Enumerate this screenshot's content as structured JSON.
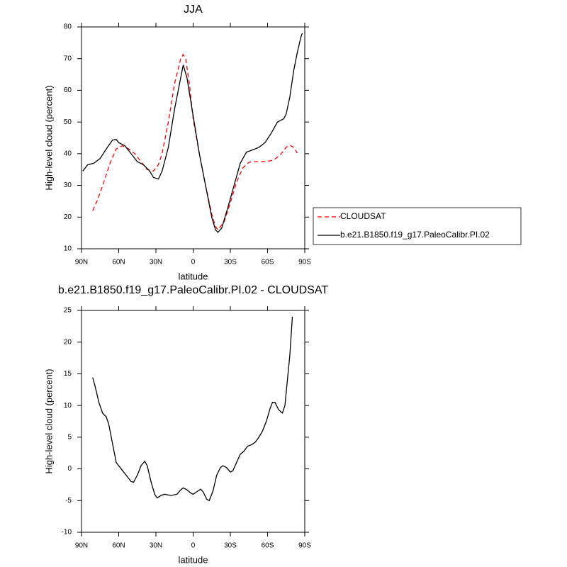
{
  "chart_data": [
    {
      "type": "line",
      "title": "JJA",
      "x_label": "latitude",
      "y_label": "High-level cloud (percent)",
      "xlim": [
        90,
        -90
      ],
      "ylim": [
        10,
        80
      ],
      "xticks": [
        {
          "value": 90,
          "label": "90N"
        },
        {
          "value": 60,
          "label": "60N"
        },
        {
          "value": 30,
          "label": "30N"
        },
        0,
        {
          "value": -30,
          "label": "30S"
        },
        {
          "value": -60,
          "label": "60S"
        },
        {
          "value": -90,
          "label": "90S"
        }
      ],
      "yticks": [
        10,
        20,
        30,
        40,
        50,
        60,
        70,
        80
      ],
      "legend": "right",
      "series": [
        {
          "name": "CLOUDSAT",
          "color": "#ff0000",
          "line_style": "dashed",
          "x": [
            81,
            77,
            72,
            67,
            62,
            57,
            52,
            47,
            42,
            37,
            32,
            28,
            25,
            20,
            15,
            10,
            8,
            6,
            3,
            0,
            -5,
            -10,
            -15,
            -18,
            -20,
            -25,
            -30,
            -35,
            -40,
            -45,
            -50,
            -55,
            -60,
            -65,
            -70,
            -75,
            -78,
            -81,
            -84
          ],
          "values": [
            22,
            25.5,
            31,
            37,
            41.5,
            42.5,
            41.5,
            40,
            37.5,
            35,
            34.5,
            36.5,
            40,
            50,
            62,
            70,
            71.3,
            70,
            62,
            51,
            40,
            30,
            21,
            17,
            16,
            18.5,
            24.5,
            31,
            35.5,
            37.3,
            37.5,
            37.5,
            37.6,
            38,
            39.5,
            42,
            42.7,
            42,
            40.2
          ]
        },
        {
          "name": "b.e21.B1850.f19_g17.PaleoCalibr.PI.02",
          "color": "#000000",
          "line_style": "solid",
          "x": [
            89,
            85,
            80,
            75,
            70,
            65,
            62,
            60,
            55,
            50,
            45,
            40,
            35,
            32,
            28,
            25,
            20,
            15,
            10,
            8,
            5,
            0,
            -5,
            -10,
            -15,
            -18,
            -20,
            -23,
            -28,
            -33,
            -38,
            -43,
            -48,
            -53,
            -58,
            -63,
            -68,
            -73,
            -75,
            -78,
            -81,
            -84,
            -87,
            -88
          ],
          "values": [
            34.5,
            36.5,
            37,
            38.5,
            41.5,
            44.3,
            44.5,
            43.5,
            42.5,
            40,
            37.5,
            36.5,
            34.5,
            32.5,
            32,
            34.5,
            42,
            54,
            64,
            68,
            64,
            52,
            40,
            30,
            20,
            16,
            15.2,
            16.5,
            23,
            30,
            37,
            40.5,
            41.2,
            42,
            43.5,
            46.5,
            50,
            51,
            52.5,
            58,
            66,
            72,
            77,
            78
          ]
        }
      ]
    },
    {
      "type": "line",
      "title": "b.e21.B1850.f19_g17.PaleoCalibr.PI.02 - CLOUDSAT",
      "x_label": "latitude",
      "y_label": "High-level cloud (percent)",
      "xlim": [
        90,
        -90
      ],
      "ylim": [
        -10,
        25
      ],
      "xticks": [
        {
          "value": 90,
          "label": "90N"
        },
        {
          "value": 60,
          "label": "60N"
        },
        {
          "value": 30,
          "label": "30N"
        },
        0,
        {
          "value": -30,
          "label": "30S"
        },
        {
          "value": -60,
          "label": "60S"
        },
        {
          "value": -90,
          "label": "90S"
        }
      ],
      "yticks": [
        -10,
        -5,
        0,
        5,
        10,
        15,
        20,
        25
      ],
      "series": [
        {
          "color": "#000000",
          "line_style": "solid",
          "x": [
            81,
            79,
            76,
            73,
            70,
            68,
            65,
            62,
            58,
            54,
            50,
            48,
            45,
            42,
            39,
            37,
            34,
            31,
            29,
            26,
            23,
            18,
            13,
            10,
            8,
            5,
            2,
            0,
            -3,
            -6,
            -8,
            -11,
            -13,
            -16,
            -19,
            -22,
            -24,
            -27,
            -30,
            -32,
            -35,
            -38,
            -41,
            -44,
            -47,
            -50,
            -53,
            -56,
            -59,
            -62,
            -64,
            -66,
            -69,
            -72,
            -74,
            -76,
            -78,
            -80
          ],
          "values": [
            14.4,
            13,
            10.5,
            8.8,
            8.2,
            7,
            4,
            1,
            0,
            -1,
            -2,
            -2.1,
            -1,
            0.5,
            1.2,
            0.5,
            -2,
            -4,
            -4.6,
            -4.2,
            -4,
            -4.2,
            -4,
            -3.3,
            -3,
            -3.3,
            -3.8,
            -4,
            -3.6,
            -3.2,
            -3.6,
            -4.8,
            -5,
            -3.5,
            -1,
            0.2,
            0.5,
            0.2,
            -0.5,
            -0.3,
            1,
            2.3,
            2.8,
            3.6,
            3.8,
            4.2,
            5,
            6,
            7.5,
            9.5,
            10.5,
            10.5,
            9.3,
            8.8,
            10,
            14,
            18,
            24
          ]
        }
      ]
    }
  ]
}
